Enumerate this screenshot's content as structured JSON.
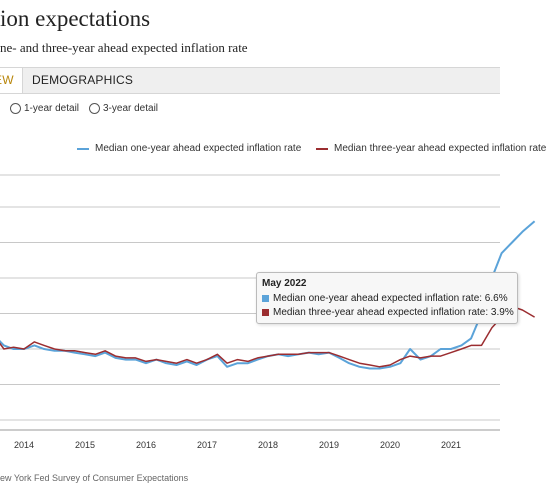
{
  "title": "ion expectations",
  "subtitle": "ne- and three-year ahead expected inflation rate",
  "tabs": [
    {
      "label": "EW"
    },
    {
      "label": "DEMOGRAPHICS"
    }
  ],
  "radios": [
    {
      "label": "1-year detail"
    },
    {
      "label": "3-year detail"
    }
  ],
  "source": "ew York Fed Survey of Consumer Expectations",
  "tooltip": {
    "title": "May 2022",
    "rows": [
      {
        "label": "Median one-year ahead expected inflation rate: 6.6%",
        "color": "#5ba3d9"
      },
      {
        "label": "Median three-year ahead expected inflation rate: 3.9%",
        "color": "#9b2d30"
      }
    ]
  },
  "chart_data": {
    "type": "line",
    "xlabel": "",
    "ylabel": "",
    "legend": "top",
    "x_ticks": [
      "2014",
      "2015",
      "2016",
      "2017",
      "2018",
      "2019",
      "2020",
      "2021"
    ],
    "series": [
      {
        "name": "Median one-year ahead expected inflation rate",
        "color": "#5ba3d9",
        "x": [
          2013.5,
          2013.67,
          2013.83,
          2014.0,
          2014.17,
          2014.33,
          2014.5,
          2014.67,
          2014.83,
          2015.0,
          2015.17,
          2015.33,
          2015.5,
          2015.67,
          2015.83,
          2016.0,
          2016.17,
          2016.33,
          2016.5,
          2016.67,
          2016.83,
          2017.0,
          2017.17,
          2017.33,
          2017.5,
          2017.67,
          2017.83,
          2018.0,
          2018.17,
          2018.33,
          2018.5,
          2018.67,
          2018.83,
          2019.0,
          2019.17,
          2019.33,
          2019.5,
          2019.67,
          2019.83,
          2020.0,
          2020.17,
          2020.33,
          2020.5,
          2020.67,
          2020.83,
          2021.0,
          2021.17,
          2021.33,
          2021.5,
          2021.67,
          2021.83,
          2022.0,
          2022.17,
          2022.37
        ],
        "values": [
          3.4,
          3.1,
          3.0,
          3.0,
          3.1,
          3.0,
          2.95,
          2.95,
          2.9,
          2.85,
          2.8,
          2.9,
          2.75,
          2.7,
          2.7,
          2.6,
          2.7,
          2.6,
          2.55,
          2.65,
          2.55,
          2.7,
          2.8,
          2.5,
          2.6,
          2.6,
          2.7,
          2.8,
          2.85,
          2.8,
          2.85,
          2.9,
          2.85,
          2.9,
          2.75,
          2.6,
          2.5,
          2.45,
          2.45,
          2.5,
          2.6,
          3.0,
          2.7,
          2.8,
          3.0,
          3.0,
          3.1,
          3.3,
          4.0,
          5.0,
          5.7,
          6.0,
          6.3,
          6.6
        ]
      },
      {
        "name": "Median three-year ahead expected inflation rate",
        "color": "#9b2d30",
        "x": [
          2013.5,
          2013.67,
          2013.83,
          2014.0,
          2014.17,
          2014.33,
          2014.5,
          2014.67,
          2014.83,
          2015.0,
          2015.17,
          2015.33,
          2015.5,
          2015.67,
          2015.83,
          2016.0,
          2016.17,
          2016.33,
          2016.5,
          2016.67,
          2016.83,
          2017.0,
          2017.17,
          2017.33,
          2017.5,
          2017.67,
          2017.83,
          2018.0,
          2018.17,
          2018.33,
          2018.5,
          2018.67,
          2018.83,
          2019.0,
          2019.17,
          2019.33,
          2019.5,
          2019.67,
          2019.83,
          2020.0,
          2020.17,
          2020.33,
          2020.5,
          2020.67,
          2020.83,
          2021.0,
          2021.17,
          2021.33,
          2021.5,
          2021.67,
          2021.83,
          2022.0,
          2022.17,
          2022.37
        ],
        "values": [
          3.4,
          3.0,
          3.05,
          3.0,
          3.2,
          3.1,
          3.0,
          2.95,
          2.95,
          2.9,
          2.85,
          2.95,
          2.8,
          2.75,
          2.75,
          2.65,
          2.7,
          2.65,
          2.6,
          2.7,
          2.6,
          2.7,
          2.85,
          2.6,
          2.7,
          2.65,
          2.75,
          2.8,
          2.85,
          2.85,
          2.85,
          2.9,
          2.9,
          2.9,
          2.8,
          2.7,
          2.6,
          2.55,
          2.5,
          2.55,
          2.7,
          2.8,
          2.75,
          2.8,
          2.8,
          2.9,
          3.0,
          3.1,
          3.1,
          3.6,
          3.9,
          4.2,
          4.1,
          3.9
        ]
      }
    ]
  }
}
